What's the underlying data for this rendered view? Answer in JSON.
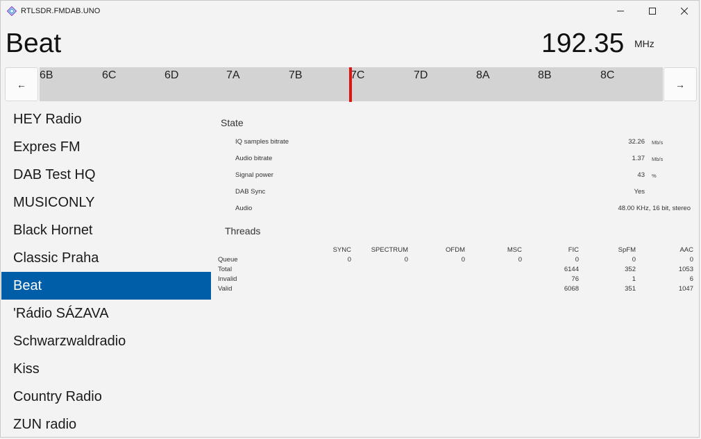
{
  "window": {
    "title": "RTLSDR.FMDAB.UNO"
  },
  "header": {
    "station": "Beat",
    "frequency": "192.35",
    "unit": "MHz"
  },
  "nav": {
    "prev": "←",
    "next": "→"
  },
  "channels": [
    "6B",
    "6C",
    "6D",
    "7A",
    "7B",
    "7C",
    "7D",
    "8A",
    "8B",
    "8C"
  ],
  "stations": [
    "HEY Radio",
    "Expres FM",
    "DAB Test HQ",
    "MUSICONLY",
    "Black Hornet",
    "Classic Praha",
    "Beat",
    "'Rádio SÁZAVA",
    "Schwarzwaldradio",
    "Kiss",
    "Country Radio",
    "ZUN radio"
  ],
  "selected_station": "Beat",
  "state": {
    "title": "State",
    "rows": [
      {
        "label": "IQ samples bitrate",
        "value": "32.26",
        "unit": "Mb/s"
      },
      {
        "label": "Audio bitrate",
        "value": "1.37",
        "unit": "Mb/s"
      },
      {
        "label": "Signal power",
        "value": "43",
        "unit": "%"
      },
      {
        "label": "DAB Sync",
        "value": "Yes",
        "unit": ""
      },
      {
        "label": "Audio",
        "value": "48.00 KHz, 16 bit, stereo",
        "unit": ""
      }
    ]
  },
  "threads": {
    "title": "Threads",
    "columns": [
      "SYNC",
      "SPECTRUM",
      "OFDM",
      "MSC",
      "FIC",
      "SpFM",
      "AAC"
    ],
    "rows": [
      {
        "name": "Queue",
        "cells": [
          "0",
          "0",
          "0",
          "0",
          "0",
          "0",
          "0"
        ]
      },
      {
        "name": "Total",
        "cells": [
          "",
          "",
          "",
          "",
          "6144",
          "352",
          "1053"
        ]
      },
      {
        "name": "Invalid",
        "cells": [
          "",
          "",
          "",
          "",
          "76",
          "1",
          "6"
        ]
      },
      {
        "name": "Valid",
        "cells": [
          "",
          "",
          "",
          "",
          "6068",
          "351",
          "1047"
        ]
      }
    ]
  },
  "colors": {
    "accent": "#005ea8",
    "marker": "#e3130e",
    "strip": "#d3d3d3"
  }
}
